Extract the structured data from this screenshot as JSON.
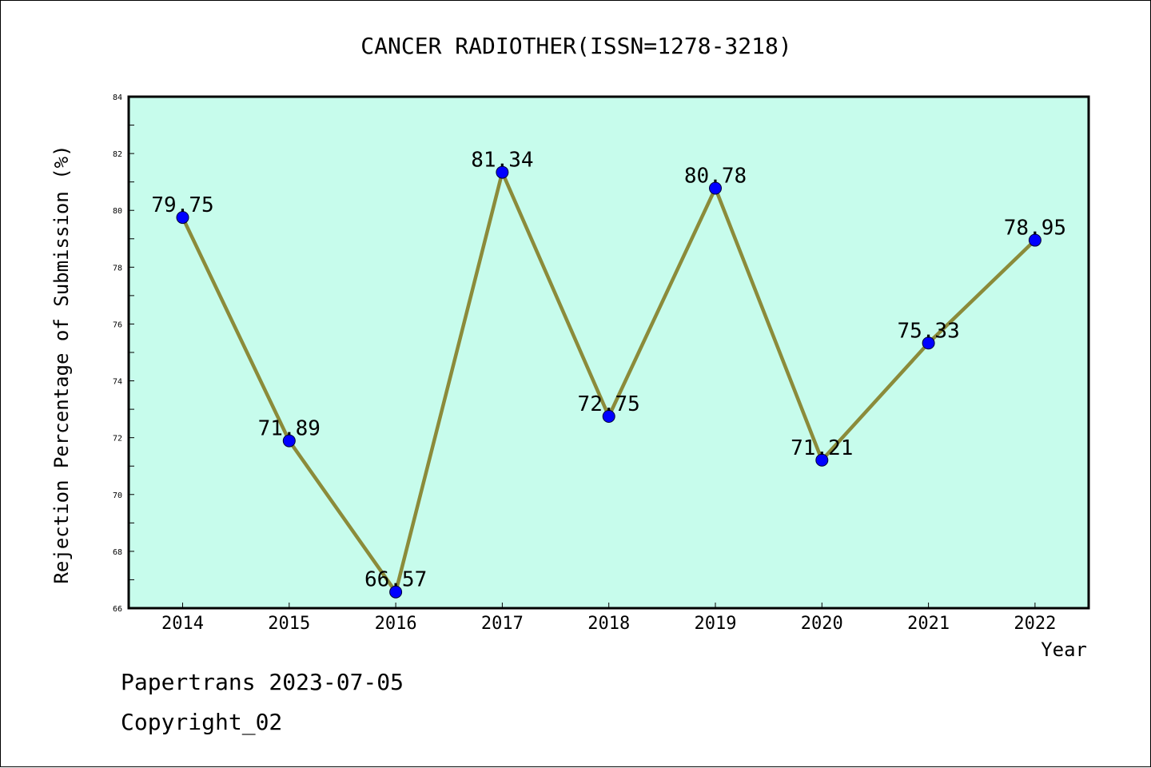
{
  "chart_data": {
    "type": "line",
    "title": "CANCER RADIOTHER(ISSN=1278-3218)",
    "xlabel": "Year",
    "ylabel": "Rejection Percentage of Submission (%)",
    "categories": [
      "2014",
      "2015",
      "2016",
      "2017",
      "2018",
      "2019",
      "2020",
      "2021",
      "2022"
    ],
    "values": [
      79.75,
      71.89,
      66.57,
      81.34,
      72.75,
      80.78,
      71.21,
      75.33,
      78.95
    ],
    "data_labels": [
      "79.75",
      "71.89",
      "66.57",
      "81.34",
      "72.75",
      "80.78",
      "71.21",
      "75.33",
      "78.95"
    ],
    "ylim": [
      66,
      84
    ],
    "yticks": [
      66,
      68,
      70,
      72,
      74,
      76,
      78,
      80,
      82,
      84
    ],
    "grid": false,
    "legend": "none",
    "colors": {
      "plot_background": "#c7fcec",
      "line": "#8b8b3a",
      "marker": "#0000ff"
    }
  },
  "footer": {
    "line1": "Papertrans 2023-07-05",
    "line2": "Copyright_02"
  }
}
